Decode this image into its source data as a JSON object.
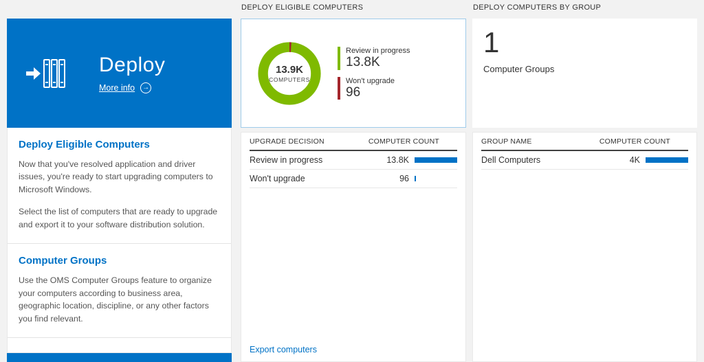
{
  "colors": {
    "accent_blue": "#0072c6",
    "donut_green": "#7fba00",
    "donut_red": "#a4262c",
    "bar_blue": "#0072c6"
  },
  "left_tile": {
    "title": "Deploy",
    "more_info_label": "More info",
    "body_sections": [
      {
        "heading": "Deploy Eligible Computers",
        "paragraphs": [
          "Now that you've resolved application and driver issues, you're ready to start upgrading computers to Microsoft Windows.",
          "Select the list of computers that are ready to upgrade and export it to your software distribution solution."
        ]
      },
      {
        "heading": "Computer Groups",
        "paragraphs": [
          "Use the OMS Computer Groups feature to organize your computers according to business area, geographic location, discipline, or any other factors you find relevant."
        ]
      }
    ]
  },
  "eligible_panel": {
    "header": "DEPLOY ELIGIBLE COMPUTERS",
    "donut_center_value": "13.9K",
    "donut_center_label": "COMPUTERS",
    "legend": [
      {
        "label": "Review in progress",
        "value": "13.8K"
      },
      {
        "label": "Won't upgrade",
        "value": "96"
      }
    ],
    "table": {
      "col1": "UPGRADE DECISION",
      "col2": "COMPUTER COUNT",
      "rows": [
        {
          "label": "Review in progress",
          "value": "13.8K",
          "bar_pct": 100
        },
        {
          "label": "Won't upgrade",
          "value": "96",
          "bar_pct": 2
        }
      ]
    },
    "footer_link": "Export computers"
  },
  "groups_panel": {
    "header": "DEPLOY COMPUTERS BY GROUP",
    "group_count": "1",
    "group_count_label": "Computer Groups",
    "table": {
      "col1": "GROUP NAME",
      "col2": "COMPUTER COUNT",
      "rows": [
        {
          "label": "Dell Computers",
          "value": "4K",
          "bar_pct": 100
        }
      ]
    }
  },
  "chart_data": [
    {
      "type": "pie",
      "title": "Deploy Eligible Computers",
      "labels": [
        "Review in progress",
        "Won't upgrade"
      ],
      "values": [
        13800,
        96
      ],
      "center_text": "13.9K COMPUTERS",
      "colors": [
        "#7fba00",
        "#a4262c"
      ],
      "legend_position": "right"
    },
    {
      "type": "table",
      "title": "Upgrade decision counts",
      "columns": [
        "UPGRADE DECISION",
        "COMPUTER COUNT"
      ],
      "rows": [
        [
          "Review in progress",
          "13.8K"
        ],
        [
          "Won't upgrade",
          "96"
        ]
      ]
    },
    {
      "type": "table",
      "title": "Computers by group",
      "columns": [
        "GROUP NAME",
        "COMPUTER COUNT"
      ],
      "rows": [
        [
          "Dell Computers",
          "4K"
        ]
      ]
    }
  ]
}
